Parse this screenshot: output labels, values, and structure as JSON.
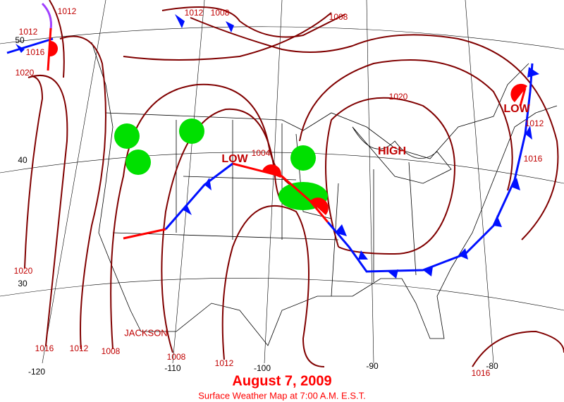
{
  "title": "August 7, 2009",
  "subtitle": "Surface Weather Map at 7:00 A.M. E.S.T.",
  "pressure_systems": [
    "LOW",
    "LOW",
    "HIGH"
  ],
  "isobar_labels": [
    1012,
    1012,
    1016,
    1020,
    1012,
    1008,
    1008,
    1020,
    1004,
    1012,
    1016,
    1020,
    1016,
    1012,
    1008,
    1008,
    1012,
    1016
  ],
  "latitude_labels": [
    50,
    40,
    30
  ],
  "longitude_labels": [
    -120,
    -110,
    -100,
    -90,
    -80
  ],
  "place_labels": [
    "JACKSON"
  ]
}
